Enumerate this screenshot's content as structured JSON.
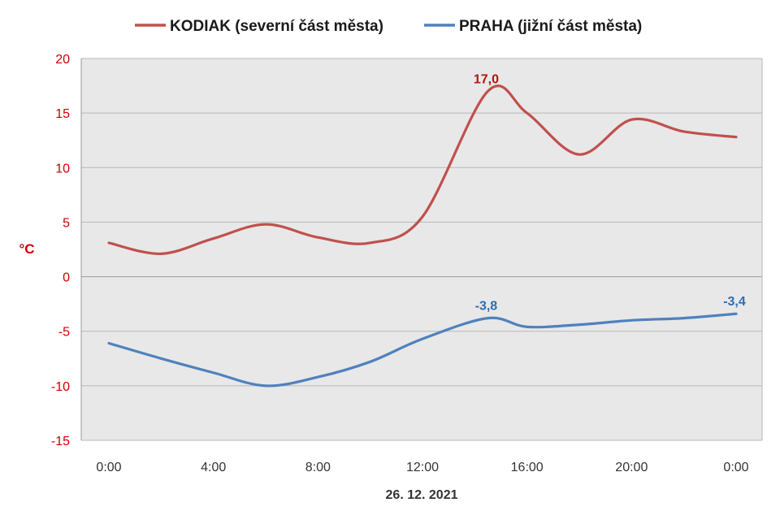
{
  "chart_data": {
    "type": "line",
    "xlabel": "26. 12. 2021",
    "ylabel": "°C",
    "ylim": [
      -15,
      20
    ],
    "yticks": [
      "20",
      "15",
      "10",
      "5",
      "0",
      "-5",
      "-10",
      "-15"
    ],
    "x_hours": [
      0,
      2,
      4,
      6,
      8,
      10,
      12,
      14.5,
      16,
      18,
      20,
      22,
      24
    ],
    "xtick_hours": [
      0,
      4,
      8,
      12,
      16,
      20,
      24
    ],
    "xtick_labels": [
      "0:00",
      "4:00",
      "8:00",
      "12:00",
      "16:00",
      "20:00",
      "0:00"
    ],
    "grid": true,
    "legend_position": "top",
    "background": "#e8e8e8",
    "series": [
      {
        "name": "KODIAK (severní část města)",
        "color": "#c0504d",
        "values": [
          3.1,
          2.1,
          3.5,
          4.8,
          3.6,
          3.1,
          5.5,
          17.0,
          15.0,
          11.2,
          14.4,
          13.3,
          12.8
        ],
        "annotations": [
          {
            "index": 7,
            "text": "17,0"
          }
        ]
      },
      {
        "name": "PRAHA (jižní část města)",
        "color": "#4f81bd",
        "values": [
          -6.1,
          -7.5,
          -8.8,
          -10.0,
          -9.2,
          -7.8,
          -5.7,
          -3.8,
          -4.6,
          -4.4,
          -4.0,
          -3.8,
          -3.4
        ],
        "annotations": [
          {
            "index": 7,
            "text": "-3,8"
          },
          {
            "index": 12,
            "text": "-3,4"
          }
        ]
      }
    ]
  }
}
